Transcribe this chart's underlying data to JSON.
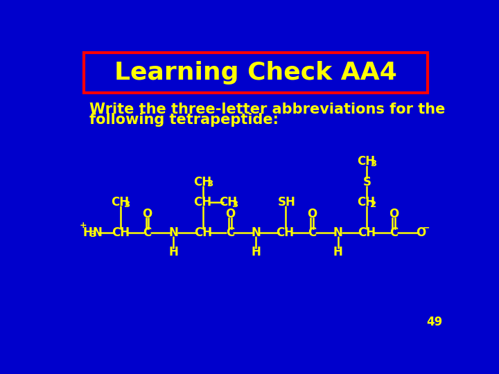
{
  "background_color": "#0000CC",
  "title_text": "Learning Check AA4",
  "title_color": "#FFFF00",
  "title_box_color": "#FF0000",
  "title_fontsize": 26,
  "body_text_color": "#FFFF00",
  "subtitle_line1": "Write the three-letter abbreviations for the",
  "subtitle_line2": "following tetrapeptide:",
  "subtitle_fontsize": 15,
  "page_number": "49",
  "page_number_color": "#FFFF00",
  "page_number_fontsize": 12
}
